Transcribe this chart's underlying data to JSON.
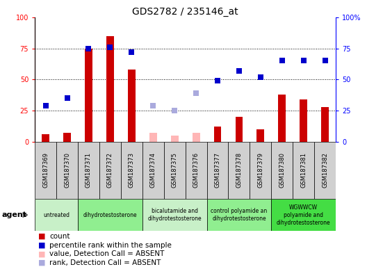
{
  "title": "GDS2782 / 235146_at",
  "samples": [
    "GSM187369",
    "GSM187370",
    "GSM187371",
    "GSM187372",
    "GSM187373",
    "GSM187374",
    "GSM187375",
    "GSM187376",
    "GSM187377",
    "GSM187378",
    "GSM187379",
    "GSM187380",
    "GSM187381",
    "GSM187382"
  ],
  "count": [
    6,
    7,
    75,
    85,
    58,
    0,
    0,
    0,
    12,
    20,
    10,
    38,
    34,
    28
  ],
  "percentile_rank": [
    29,
    35,
    75,
    76,
    72,
    null,
    null,
    null,
    49,
    57,
    52,
    65,
    65,
    65
  ],
  "absent_value": [
    null,
    null,
    null,
    null,
    null,
    7,
    5,
    7,
    null,
    null,
    null,
    null,
    null,
    null
  ],
  "absent_rank": [
    null,
    null,
    null,
    null,
    null,
    29,
    25,
    39,
    null,
    null,
    null,
    null,
    null,
    null
  ],
  "absent_flags": [
    false,
    false,
    false,
    false,
    false,
    true,
    true,
    true,
    false,
    false,
    false,
    false,
    false,
    false
  ],
  "groups": [
    {
      "label": "untreated",
      "start": 0,
      "end": 2,
      "color": "#c8f0c8"
    },
    {
      "label": "dihydrotestosterone",
      "start": 2,
      "end": 5,
      "color": "#90ee90"
    },
    {
      "label": "bicalutamide and\ndihydrotestosterone",
      "start": 5,
      "end": 8,
      "color": "#c8f0c8"
    },
    {
      "label": "control polyamide an\ndihydrotestosterone",
      "start": 8,
      "end": 11,
      "color": "#90ee90"
    },
    {
      "label": "WGWWCW\npolyamide and\ndihydrotestosterone",
      "start": 11,
      "end": 14,
      "color": "#44dd44"
    }
  ],
  "bar_color_present": "#cc0000",
  "bar_color_absent": "#ffb6b6",
  "dot_color_present": "#0000cc",
  "dot_color_absent": "#aaaadd",
  "ylim": [
    0,
    100
  ],
  "grid_ticks": [
    25,
    50,
    75
  ],
  "ytick_labels_left": [
    "0",
    "25",
    "50",
    "75",
    "100"
  ],
  "ytick_labels_right": [
    "0",
    "25",
    "50",
    "75",
    "100%"
  ],
  "legend_items": [
    {
      "label": "count",
      "color": "#cc0000"
    },
    {
      "label": "percentile rank within the sample",
      "color": "#0000cc"
    },
    {
      "label": "value, Detection Call = ABSENT",
      "color": "#ffb6b6"
    },
    {
      "label": "rank, Detection Call = ABSENT",
      "color": "#aaaadd"
    }
  ],
  "agent_label": "agent",
  "bar_width": 0.35,
  "marker_size": 6,
  "gray_bg": "#d0d0d0",
  "title_fontsize": 10,
  "tick_fontsize": 7,
  "label_fontsize": 6,
  "legend_fontsize": 7.5
}
